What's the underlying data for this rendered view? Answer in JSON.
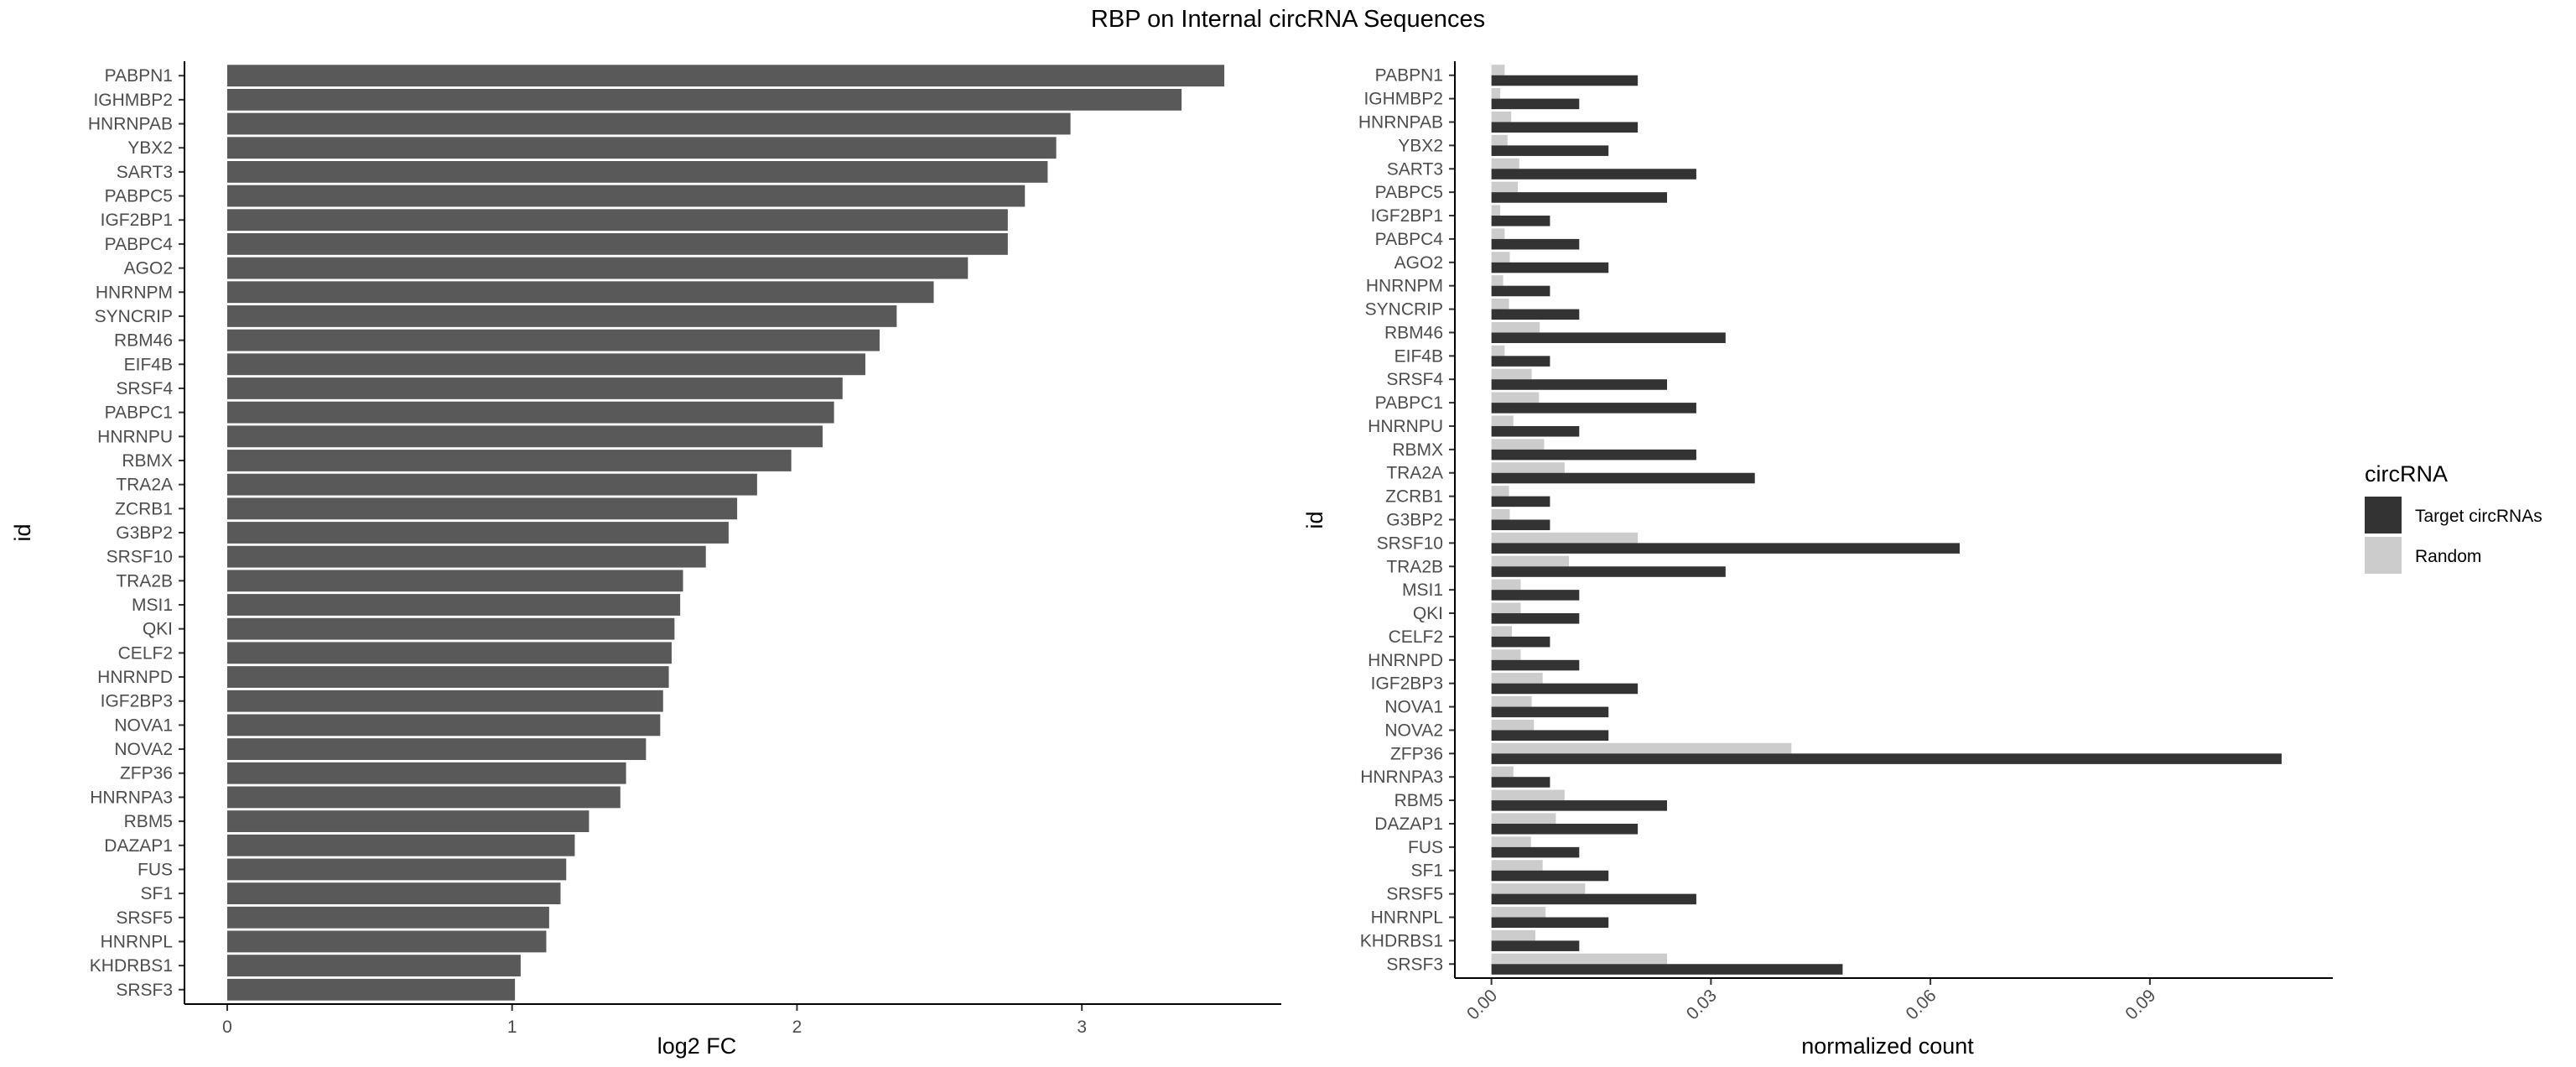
{
  "title": "RBP on Internal circRNA Sequences",
  "legend": {
    "title": "circRNA",
    "items": [
      {
        "label": "Target circRNAs",
        "color": "#333333"
      },
      {
        "label": "Random",
        "color": "#cccccc"
      }
    ]
  },
  "chart_data": [
    {
      "type": "bar",
      "orientation": "horizontal",
      "xlabel": "log2 FC",
      "ylabel": "id",
      "xlim": [
        -0.15,
        3.7
      ],
      "xticks": [
        0,
        1,
        2,
        3
      ],
      "bar_color": "#595959",
      "categories": [
        "PABPN1",
        "IGHMBP2",
        "HNRNPAB",
        "YBX2",
        "SART3",
        "PABPC5",
        "IGF2BP1",
        "PABPC4",
        "AGO2",
        "HNRNPM",
        "SYNCRIP",
        "RBM46",
        "EIF4B",
        "SRSF4",
        "PABPC1",
        "HNRNPU",
        "RBMX",
        "TRA2A",
        "ZCRB1",
        "G3BP2",
        "SRSF10",
        "TRA2B",
        "MSI1",
        "QKI",
        "CELF2",
        "HNRNPD",
        "IGF2BP3",
        "NOVA1",
        "NOVA2",
        "ZFP36",
        "HNRNPA3",
        "RBM5",
        "DAZAP1",
        "FUS",
        "SF1",
        "SRSF5",
        "HNRNPL",
        "KHDRBS1",
        "SRSF3"
      ],
      "values": [
        3.5,
        3.35,
        2.96,
        2.91,
        2.88,
        2.8,
        2.74,
        2.74,
        2.6,
        2.48,
        2.35,
        2.29,
        2.24,
        2.16,
        2.13,
        2.09,
        1.98,
        1.86,
        1.79,
        1.76,
        1.68,
        1.6,
        1.59,
        1.57,
        1.56,
        1.55,
        1.53,
        1.52,
        1.47,
        1.4,
        1.38,
        1.27,
        1.22,
        1.19,
        1.17,
        1.13,
        1.12,
        1.03,
        1.01
      ]
    },
    {
      "type": "bar",
      "orientation": "horizontal",
      "grouped": true,
      "xlabel": "normalized count",
      "ylabel": "id",
      "xlim": [
        -0.005,
        0.115
      ],
      "xticks": [
        "0.00",
        "0.03",
        "0.06",
        "0.09"
      ],
      "categories": [
        "PABPN1",
        "IGHMBP2",
        "HNRNPAB",
        "YBX2",
        "SART3",
        "PABPC5",
        "IGF2BP1",
        "PABPC4",
        "AGO2",
        "HNRNPM",
        "SYNCRIP",
        "RBM46",
        "EIF4B",
        "SRSF4",
        "PABPC1",
        "HNRNPU",
        "RBMX",
        "TRA2A",
        "ZCRB1",
        "G3BP2",
        "SRSF10",
        "TRA2B",
        "MSI1",
        "QKI",
        "CELF2",
        "HNRNPD",
        "IGF2BP3",
        "NOVA1",
        "NOVA2",
        "ZFP36",
        "HNRNPA3",
        "RBM5",
        "DAZAP1",
        "FUS",
        "SF1",
        "SRSF5",
        "HNRNPL",
        "KHDRBS1",
        "SRSF3"
      ],
      "series": [
        {
          "name": "Target circRNAs",
          "color": "#333333",
          "values": [
            0.02,
            0.012,
            0.02,
            0.016,
            0.028,
            0.024,
            0.008,
            0.012,
            0.016,
            0.008,
            0.012,
            0.032,
            0.008,
            0.024,
            0.028,
            0.012,
            0.028,
            0.036,
            0.008,
            0.008,
            0.064,
            0.032,
            0.012,
            0.012,
            0.008,
            0.012,
            0.02,
            0.016,
            0.016,
            0.108,
            0.008,
            0.024,
            0.02,
            0.012,
            0.016,
            0.028,
            0.016,
            0.012,
            0.048
          ]
        },
        {
          "name": "Random",
          "color": "#cccccc",
          "values": [
            0.0018,
            0.0012,
            0.0027,
            0.0022,
            0.0038,
            0.0036,
            0.0012,
            0.0018,
            0.0025,
            0.0016,
            0.0024,
            0.0066,
            0.0018,
            0.0055,
            0.0065,
            0.003,
            0.0072,
            0.01,
            0.0024,
            0.0025,
            0.02,
            0.0106,
            0.004,
            0.004,
            0.0028,
            0.004,
            0.007,
            0.0055,
            0.0058,
            0.041,
            0.003,
            0.01,
            0.0088,
            0.0054,
            0.007,
            0.0128,
            0.0074,
            0.006,
            0.024
          ]
        }
      ]
    }
  ]
}
